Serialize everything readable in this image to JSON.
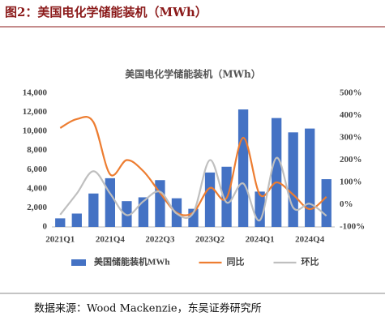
{
  "header": {
    "title": "图2：美国电化学储能装机（MWh）"
  },
  "chart_data": {
    "type": "bar_line",
    "title": "美国电化学储能装机（MWh）",
    "categories": [
      "2021Q1",
      null,
      null,
      "2021Q4",
      null,
      null,
      "2022Q3",
      null,
      null,
      "2023Q2",
      null,
      null,
      "2024Q1",
      null,
      null,
      "2024Q4",
      null
    ],
    "series": [
      {
        "name": "美国储能装机MWh",
        "color": "#4472c4",
        "type": "bar",
        "values": [
          900,
          1400,
          3500,
          5100,
          2700,
          3100,
          4900,
          3000,
          1900,
          5700,
          6300,
          12300,
          3700,
          11400,
          9900,
          10300,
          5000
        ]
      },
      {
        "name": "同比",
        "color": "#ed7d31",
        "type": "line",
        "axis": "y2",
        "values": [
          344,
          384,
          370,
          136,
          200,
          150,
          53,
          -36,
          -35,
          75,
          30,
          300,
          45,
          100,
          45,
          -20,
          35
        ]
      },
      {
        "name": "环比",
        "color": "#bfbfbf",
        "type": "line",
        "axis": "y2",
        "values": [
          -45,
          50,
          150,
          50,
          -47,
          15,
          58,
          -40,
          -37,
          200,
          10,
          95,
          -70,
          210,
          -13,
          4,
          -50
        ]
      }
    ],
    "ylim": [
      0,
      14000
    ],
    "yticks": [
      0,
      {
        "value": 2000,
        "label": "2,000"
      },
      {
        "value": 4000,
        "label": "4,000"
      },
      {
        "value": 6000,
        "label": "6,000"
      },
      {
        "value": 8000,
        "label": "8,000"
      },
      {
        "value": 10000,
        "label": "10,000"
      },
      {
        "value": 12000,
        "label": "12,000"
      },
      {
        "value": 14000,
        "label": "14,000"
      }
    ],
    "y2lim": [
      -100,
      500
    ],
    "y2ticks": [
      {
        "value": -100,
        "label": "-100%"
      },
      {
        "value": 0,
        "label": "0%"
      },
      {
        "value": 100,
        "label": "100%"
      },
      {
        "value": 200,
        "label": "200%"
      },
      {
        "value": 300,
        "label": "300%"
      },
      {
        "value": 400,
        "label": "400%"
      },
      {
        "value": 500,
        "label": "500%"
      }
    ],
    "legend": "bottom"
  },
  "source": "数据来源：Wood Mackenzie，东吴证券研究所"
}
